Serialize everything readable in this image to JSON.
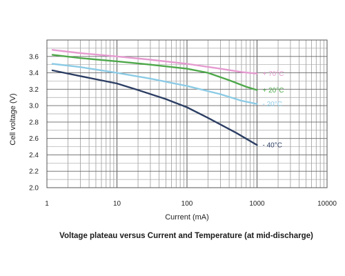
{
  "chart_data": {
    "type": "line",
    "title": "Voltage plateau versus Current and Temperature (at mid-discharge)",
    "xlabel": "Current (mA)",
    "ylabel": "Cell voltage (V)",
    "x_scale": "log",
    "xlim": [
      1,
      10000
    ],
    "ylim": [
      2.0,
      3.8
    ],
    "x_ticks": [
      "1",
      "10",
      "100",
      "1000",
      "10000"
    ],
    "y_ticks": [
      "2.0",
      "2.2",
      "2.4",
      "2.6",
      "2.8",
      "3.0",
      "3.2",
      "3.4",
      "3.6"
    ],
    "grid": true,
    "series": [
      {
        "name": "+ 70°C",
        "color": "#e59ad0",
        "x": [
          1.2,
          3,
          10,
          30,
          100,
          300,
          600,
          1000
        ],
        "y": [
          3.68,
          3.64,
          3.6,
          3.56,
          3.51,
          3.45,
          3.41,
          3.39
        ]
      },
      {
        "name": "+ 20°C",
        "color": "#4ea84a",
        "x": [
          1.2,
          3,
          10,
          30,
          100,
          200,
          400,
          700,
          1000
        ],
        "y": [
          3.62,
          3.58,
          3.54,
          3.5,
          3.45,
          3.4,
          3.31,
          3.23,
          3.19
        ]
      },
      {
        "name": "- 20°C",
        "color": "#8ccbe5",
        "x": [
          1.2,
          3,
          10,
          30,
          100,
          300,
          600,
          1000
        ],
        "y": [
          3.51,
          3.47,
          3.4,
          3.33,
          3.24,
          3.14,
          3.06,
          3.02
        ]
      },
      {
        "name": "- 40°C",
        "color": "#2c3e63",
        "x": [
          1.2,
          3,
          10,
          20,
          50,
          100,
          200,
          500,
          1000
        ],
        "y": [
          3.43,
          3.36,
          3.27,
          3.19,
          3.08,
          2.98,
          2.85,
          2.67,
          2.52
        ]
      }
    ]
  }
}
